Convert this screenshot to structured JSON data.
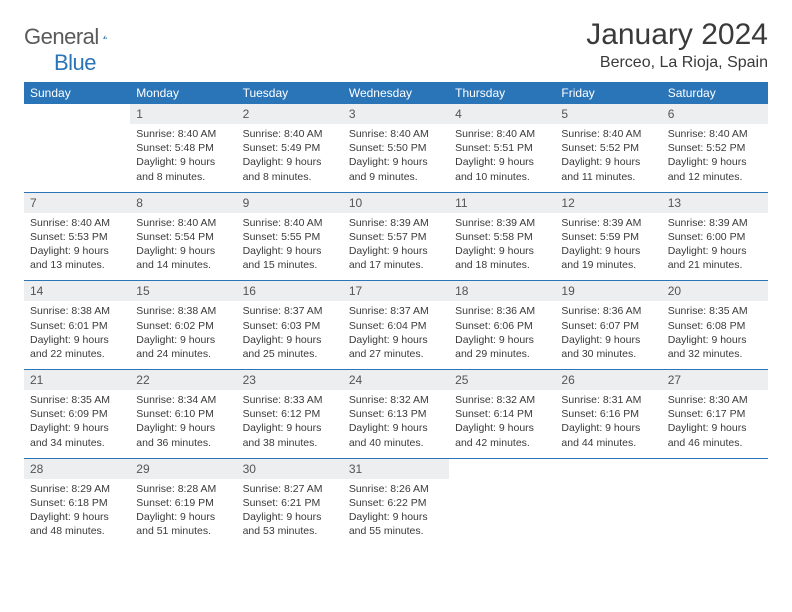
{
  "logo": {
    "textA": "General",
    "textB": "Blue"
  },
  "title": {
    "month": "January 2024",
    "location": "Berceo, La Rioja, Spain"
  },
  "colors": {
    "brand": "#2a74b8",
    "headerText": "#ffffff",
    "dayBg": "#eceeef",
    "text": "#3a3a3a"
  },
  "dayHeaders": [
    "Sunday",
    "Monday",
    "Tuesday",
    "Wednesday",
    "Thursday",
    "Friday",
    "Saturday"
  ],
  "weeks": [
    {
      "days": [
        {
          "num": "",
          "sunrise": "",
          "sunset": "",
          "daylight1": "",
          "daylight2": ""
        },
        {
          "num": "1",
          "sunrise": "Sunrise: 8:40 AM",
          "sunset": "Sunset: 5:48 PM",
          "daylight1": "Daylight: 9 hours",
          "daylight2": "and 8 minutes."
        },
        {
          "num": "2",
          "sunrise": "Sunrise: 8:40 AM",
          "sunset": "Sunset: 5:49 PM",
          "daylight1": "Daylight: 9 hours",
          "daylight2": "and 8 minutes."
        },
        {
          "num": "3",
          "sunrise": "Sunrise: 8:40 AM",
          "sunset": "Sunset: 5:50 PM",
          "daylight1": "Daylight: 9 hours",
          "daylight2": "and 9 minutes."
        },
        {
          "num": "4",
          "sunrise": "Sunrise: 8:40 AM",
          "sunset": "Sunset: 5:51 PM",
          "daylight1": "Daylight: 9 hours",
          "daylight2": "and 10 minutes."
        },
        {
          "num": "5",
          "sunrise": "Sunrise: 8:40 AM",
          "sunset": "Sunset: 5:52 PM",
          "daylight1": "Daylight: 9 hours",
          "daylight2": "and 11 minutes."
        },
        {
          "num": "6",
          "sunrise": "Sunrise: 8:40 AM",
          "sunset": "Sunset: 5:52 PM",
          "daylight1": "Daylight: 9 hours",
          "daylight2": "and 12 minutes."
        }
      ]
    },
    {
      "days": [
        {
          "num": "7",
          "sunrise": "Sunrise: 8:40 AM",
          "sunset": "Sunset: 5:53 PM",
          "daylight1": "Daylight: 9 hours",
          "daylight2": "and 13 minutes."
        },
        {
          "num": "8",
          "sunrise": "Sunrise: 8:40 AM",
          "sunset": "Sunset: 5:54 PM",
          "daylight1": "Daylight: 9 hours",
          "daylight2": "and 14 minutes."
        },
        {
          "num": "9",
          "sunrise": "Sunrise: 8:40 AM",
          "sunset": "Sunset: 5:55 PM",
          "daylight1": "Daylight: 9 hours",
          "daylight2": "and 15 minutes."
        },
        {
          "num": "10",
          "sunrise": "Sunrise: 8:39 AM",
          "sunset": "Sunset: 5:57 PM",
          "daylight1": "Daylight: 9 hours",
          "daylight2": "and 17 minutes."
        },
        {
          "num": "11",
          "sunrise": "Sunrise: 8:39 AM",
          "sunset": "Sunset: 5:58 PM",
          "daylight1": "Daylight: 9 hours",
          "daylight2": "and 18 minutes."
        },
        {
          "num": "12",
          "sunrise": "Sunrise: 8:39 AM",
          "sunset": "Sunset: 5:59 PM",
          "daylight1": "Daylight: 9 hours",
          "daylight2": "and 19 minutes."
        },
        {
          "num": "13",
          "sunrise": "Sunrise: 8:39 AM",
          "sunset": "Sunset: 6:00 PM",
          "daylight1": "Daylight: 9 hours",
          "daylight2": "and 21 minutes."
        }
      ]
    },
    {
      "days": [
        {
          "num": "14",
          "sunrise": "Sunrise: 8:38 AM",
          "sunset": "Sunset: 6:01 PM",
          "daylight1": "Daylight: 9 hours",
          "daylight2": "and 22 minutes."
        },
        {
          "num": "15",
          "sunrise": "Sunrise: 8:38 AM",
          "sunset": "Sunset: 6:02 PM",
          "daylight1": "Daylight: 9 hours",
          "daylight2": "and 24 minutes."
        },
        {
          "num": "16",
          "sunrise": "Sunrise: 8:37 AM",
          "sunset": "Sunset: 6:03 PM",
          "daylight1": "Daylight: 9 hours",
          "daylight2": "and 25 minutes."
        },
        {
          "num": "17",
          "sunrise": "Sunrise: 8:37 AM",
          "sunset": "Sunset: 6:04 PM",
          "daylight1": "Daylight: 9 hours",
          "daylight2": "and 27 minutes."
        },
        {
          "num": "18",
          "sunrise": "Sunrise: 8:36 AM",
          "sunset": "Sunset: 6:06 PM",
          "daylight1": "Daylight: 9 hours",
          "daylight2": "and 29 minutes."
        },
        {
          "num": "19",
          "sunrise": "Sunrise: 8:36 AM",
          "sunset": "Sunset: 6:07 PM",
          "daylight1": "Daylight: 9 hours",
          "daylight2": "and 30 minutes."
        },
        {
          "num": "20",
          "sunrise": "Sunrise: 8:35 AM",
          "sunset": "Sunset: 6:08 PM",
          "daylight1": "Daylight: 9 hours",
          "daylight2": "and 32 minutes."
        }
      ]
    },
    {
      "days": [
        {
          "num": "21",
          "sunrise": "Sunrise: 8:35 AM",
          "sunset": "Sunset: 6:09 PM",
          "daylight1": "Daylight: 9 hours",
          "daylight2": "and 34 minutes."
        },
        {
          "num": "22",
          "sunrise": "Sunrise: 8:34 AM",
          "sunset": "Sunset: 6:10 PM",
          "daylight1": "Daylight: 9 hours",
          "daylight2": "and 36 minutes."
        },
        {
          "num": "23",
          "sunrise": "Sunrise: 8:33 AM",
          "sunset": "Sunset: 6:12 PM",
          "daylight1": "Daylight: 9 hours",
          "daylight2": "and 38 minutes."
        },
        {
          "num": "24",
          "sunrise": "Sunrise: 8:32 AM",
          "sunset": "Sunset: 6:13 PM",
          "daylight1": "Daylight: 9 hours",
          "daylight2": "and 40 minutes."
        },
        {
          "num": "25",
          "sunrise": "Sunrise: 8:32 AM",
          "sunset": "Sunset: 6:14 PM",
          "daylight1": "Daylight: 9 hours",
          "daylight2": "and 42 minutes."
        },
        {
          "num": "26",
          "sunrise": "Sunrise: 8:31 AM",
          "sunset": "Sunset: 6:16 PM",
          "daylight1": "Daylight: 9 hours",
          "daylight2": "and 44 minutes."
        },
        {
          "num": "27",
          "sunrise": "Sunrise: 8:30 AM",
          "sunset": "Sunset: 6:17 PM",
          "daylight1": "Daylight: 9 hours",
          "daylight2": "and 46 minutes."
        }
      ]
    },
    {
      "days": [
        {
          "num": "28",
          "sunrise": "Sunrise: 8:29 AM",
          "sunset": "Sunset: 6:18 PM",
          "daylight1": "Daylight: 9 hours",
          "daylight2": "and 48 minutes."
        },
        {
          "num": "29",
          "sunrise": "Sunrise: 8:28 AM",
          "sunset": "Sunset: 6:19 PM",
          "daylight1": "Daylight: 9 hours",
          "daylight2": "and 51 minutes."
        },
        {
          "num": "30",
          "sunrise": "Sunrise: 8:27 AM",
          "sunset": "Sunset: 6:21 PM",
          "daylight1": "Daylight: 9 hours",
          "daylight2": "and 53 minutes."
        },
        {
          "num": "31",
          "sunrise": "Sunrise: 8:26 AM",
          "sunset": "Sunset: 6:22 PM",
          "daylight1": "Daylight: 9 hours",
          "daylight2": "and 55 minutes."
        },
        {
          "num": "",
          "sunrise": "",
          "sunset": "",
          "daylight1": "",
          "daylight2": ""
        },
        {
          "num": "",
          "sunrise": "",
          "sunset": "",
          "daylight1": "",
          "daylight2": ""
        },
        {
          "num": "",
          "sunrise": "",
          "sunset": "",
          "daylight1": "",
          "daylight2": ""
        }
      ]
    }
  ]
}
